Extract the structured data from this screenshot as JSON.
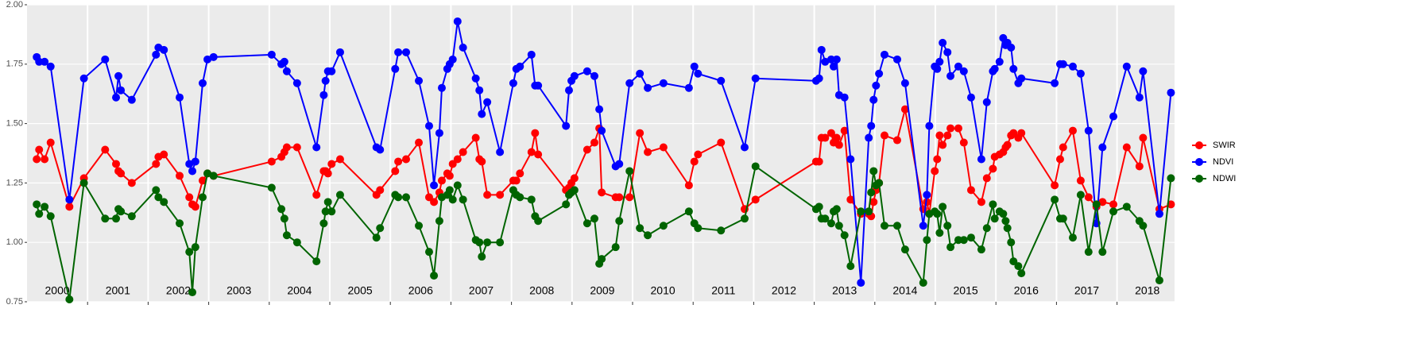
{
  "chart_data": {
    "type": "line",
    "x": [
      2000.16,
      2000.2,
      2000.29,
      2000.39,
      2000.7,
      2000.94,
      2001.29,
      2001.47,
      2001.51,
      2001.55,
      2001.73,
      2002.13,
      2002.17,
      2002.26,
      2002.52,
      2002.68,
      2002.73,
      2002.78,
      2002.9,
      2002.98,
      2003.08,
      2004.04,
      2004.2,
      2004.25,
      2004.29,
      2004.46,
      2004.78,
      2004.9,
      2004.93,
      2004.97,
      2005.03,
      2005.17,
      2005.77,
      2005.83,
      2006.08,
      2006.13,
      2006.26,
      2006.47,
      2006.64,
      2006.72,
      2006.81,
      2006.85,
      2006.94,
      2006.98,
      2007.03,
      2007.11,
      2007.2,
      2007.41,
      2007.47,
      2007.51,
      2007.6,
      2007.81,
      2008.03,
      2008.08,
      2008.14,
      2008.33,
      2008.39,
      2008.44,
      2008.9,
      2008.95,
      2008.99,
      2009.04,
      2009.25,
      2009.37,
      2009.45,
      2009.49,
      2009.72,
      2009.78,
      2009.95,
      2010.12,
      2010.25,
      2010.51,
      2010.93,
      2011.02,
      2011.08,
      2011.46,
      2011.85,
      2012.03,
      2013.03,
      2013.08,
      2013.12,
      2013.18,
      2013.28,
      2013.32,
      2013.37,
      2013.41,
      2013.5,
      2013.6,
      2013.77,
      2013.9,
      2013.94,
      2013.98,
      2014.02,
      2014.07,
      2014.16,
      2014.37,
      2014.5,
      2014.8,
      2014.86,
      2014.9,
      2014.99,
      2015.03,
      2015.07,
      2015.12,
      2015.2,
      2015.25,
      2015.38,
      2015.47,
      2015.59,
      2015.76,
      2015.85,
      2015.95,
      2015.98,
      2016.06,
      2016.12,
      2016.16,
      2016.19,
      2016.25,
      2016.29,
      2016.37,
      2016.42,
      2016.97,
      2017.06,
      2017.11,
      2017.27,
      2017.4,
      2017.53,
      2017.66,
      2017.76,
      2017.94,
      2018.16,
      2018.37,
      2018.43,
      2018.7,
      2018.89
    ],
    "series": [
      {
        "name": "SWIR",
        "color": "#ff0000",
        "values": [
          1.35,
          1.39,
          1.35,
          1.42,
          1.15,
          1.27,
          1.39,
          1.33,
          1.3,
          1.29,
          1.25,
          1.33,
          1.36,
          1.37,
          1.28,
          1.19,
          1.16,
          1.15,
          1.26,
          1.29,
          1.28,
          1.34,
          1.36,
          1.38,
          1.4,
          1.4,
          1.2,
          1.3,
          1.3,
          1.29,
          1.33,
          1.35,
          1.2,
          1.22,
          1.3,
          1.34,
          1.35,
          1.42,
          1.19,
          1.17,
          1.21,
          1.26,
          1.29,
          1.28,
          1.33,
          1.35,
          1.38,
          1.44,
          1.35,
          1.34,
          1.2,
          1.2,
          1.26,
          1.26,
          1.29,
          1.38,
          1.46,
          1.37,
          1.22,
          1.23,
          1.25,
          1.27,
          1.39,
          1.42,
          1.48,
          1.21,
          1.19,
          1.19,
          1.19,
          1.46,
          1.38,
          1.4,
          1.24,
          1.34,
          1.37,
          1.42,
          1.14,
          1.18,
          1.34,
          1.34,
          1.44,
          1.44,
          1.46,
          1.42,
          1.44,
          1.41,
          1.47,
          1.18,
          1.12,
          1.12,
          1.11,
          1.17,
          1.22,
          1.25,
          1.45,
          1.43,
          1.56,
          1.14,
          1.17,
          1.12,
          1.3,
          1.35,
          1.45,
          1.41,
          1.45,
          1.48,
          1.48,
          1.42,
          1.22,
          1.17,
          1.27,
          1.31,
          1.36,
          1.37,
          1.38,
          1.4,
          1.41,
          1.45,
          1.46,
          1.44,
          1.46,
          1.24,
          1.35,
          1.4,
          1.47,
          1.26,
          1.19,
          1.15,
          1.17,
          1.16,
          1.4,
          1.32,
          1.44,
          1.14,
          1.16
        ]
      },
      {
        "name": "NDVI",
        "color": "#0000ff",
        "values": [
          1.78,
          1.76,
          1.76,
          1.74,
          1.18,
          1.69,
          1.77,
          1.61,
          1.7,
          1.64,
          1.6,
          1.79,
          1.82,
          1.81,
          1.61,
          1.33,
          1.3,
          1.34,
          1.67,
          1.77,
          1.78,
          1.79,
          1.75,
          1.76,
          1.72,
          1.67,
          1.4,
          1.62,
          1.68,
          1.72,
          1.72,
          1.8,
          1.4,
          1.39,
          1.73,
          1.8,
          1.8,
          1.68,
          1.49,
          1.24,
          1.46,
          1.65,
          1.73,
          1.75,
          1.77,
          1.93,
          1.82,
          1.69,
          1.64,
          1.54,
          1.59,
          1.38,
          1.67,
          1.73,
          1.74,
          1.79,
          1.66,
          1.66,
          1.49,
          1.64,
          1.68,
          1.7,
          1.72,
          1.7,
          1.56,
          1.47,
          1.32,
          1.33,
          1.67,
          1.71,
          1.65,
          1.67,
          1.65,
          1.74,
          1.71,
          1.68,
          1.4,
          1.69,
          1.68,
          1.69,
          1.81,
          1.76,
          1.77,
          1.74,
          1.77,
          1.62,
          1.61,
          1.35,
          0.83,
          1.44,
          1.49,
          1.6,
          1.66,
          1.71,
          1.79,
          1.77,
          1.67,
          1.07,
          1.2,
          1.49,
          1.74,
          1.73,
          1.76,
          1.84,
          1.8,
          1.7,
          1.74,
          1.72,
          1.61,
          1.35,
          1.59,
          1.72,
          1.73,
          1.76,
          1.86,
          1.83,
          1.84,
          1.82,
          1.73,
          1.67,
          1.69,
          1.67,
          1.75,
          1.75,
          1.74,
          1.71,
          1.47,
          1.08,
          1.4,
          1.53,
          1.74,
          1.61,
          1.72,
          1.12,
          1.63
        ]
      },
      {
        "name": "NDWI",
        "color": "#006400",
        "values": [
          1.16,
          1.12,
          1.15,
          1.11,
          0.76,
          1.25,
          1.1,
          1.1,
          1.14,
          1.13,
          1.11,
          1.22,
          1.19,
          1.17,
          1.08,
          0.96,
          0.79,
          0.98,
          1.19,
          1.29,
          1.28,
          1.23,
          1.14,
          1.1,
          1.03,
          1.0,
          0.92,
          1.08,
          1.13,
          1.17,
          1.13,
          1.2,
          1.02,
          1.06,
          1.2,
          1.19,
          1.19,
          1.07,
          0.96,
          0.86,
          1.09,
          1.19,
          1.2,
          1.22,
          1.18,
          1.24,
          1.18,
          1.01,
          1.0,
          0.94,
          1.0,
          1.0,
          1.22,
          1.2,
          1.19,
          1.18,
          1.11,
          1.09,
          1.16,
          1.2,
          1.21,
          1.22,
          1.08,
          1.1,
          0.91,
          0.93,
          0.98,
          1.09,
          1.3,
          1.06,
          1.03,
          1.07,
          1.13,
          1.08,
          1.06,
          1.05,
          1.1,
          1.32,
          1.14,
          1.15,
          1.1,
          1.1,
          1.08,
          1.13,
          1.14,
          1.07,
          1.03,
          0.9,
          1.13,
          1.13,
          1.21,
          1.3,
          1.24,
          1.25,
          1.07,
          1.07,
          0.97,
          0.83,
          1.01,
          1.12,
          1.13,
          1.12,
          1.04,
          1.15,
          1.07,
          0.98,
          1.01,
          1.01,
          1.02,
          0.97,
          1.06,
          1.16,
          1.1,
          1.13,
          1.12,
          1.09,
          1.06,
          1.0,
          0.92,
          0.9,
          0.87,
          1.18,
          1.1,
          1.1,
          1.02,
          1.2,
          0.96,
          1.16,
          0.96,
          1.13,
          1.15,
          1.09,
          1.07,
          0.84,
          1.27
        ]
      }
    ],
    "xlim": [
      2000,
      2018.95
    ],
    "ylim": [
      0.75,
      2.0
    ],
    "yticks": [
      {
        "value": 0.75,
        "label": "0.75"
      },
      {
        "value": 1.0,
        "label": "1.00"
      },
      {
        "value": 1.25,
        "label": "1.25"
      },
      {
        "value": 1.5,
        "label": "1.50"
      },
      {
        "value": 1.75,
        "label": "1.75"
      },
      {
        "value": 2.0,
        "label": "2.00"
      }
    ],
    "xgrid": [
      2001,
      2002,
      2003,
      2004,
      2005,
      2006,
      2007,
      2008,
      2009,
      2010,
      2011,
      2012,
      2013,
      2014,
      2015,
      2016,
      2017,
      2018
    ],
    "year_labels": [
      {
        "value": 2000.5,
        "label": "2000"
      },
      {
        "value": 2001.5,
        "label": "2001"
      },
      {
        "value": 2002.5,
        "label": "2002"
      },
      {
        "value": 2003.5,
        "label": "2003"
      },
      {
        "value": 2004.5,
        "label": "2004"
      },
      {
        "value": 2005.5,
        "label": "2005"
      },
      {
        "value": 2006.5,
        "label": "2006"
      },
      {
        "value": 2007.5,
        "label": "2007"
      },
      {
        "value": 2008.5,
        "label": "2008"
      },
      {
        "value": 2009.5,
        "label": "2009"
      },
      {
        "value": 2010.5,
        "label": "2010"
      },
      {
        "value": 2011.5,
        "label": "2011"
      },
      {
        "value": 2012.5,
        "label": "2012"
      },
      {
        "value": 2013.5,
        "label": "2013"
      },
      {
        "value": 2014.5,
        "label": "2014"
      },
      {
        "value": 2015.5,
        "label": "2015"
      },
      {
        "value": 2016.5,
        "label": "2016"
      },
      {
        "value": 2017.5,
        "label": "2017"
      },
      {
        "value": 2018.5,
        "label": "2018"
      }
    ],
    "grid": true,
    "legend": "right"
  }
}
